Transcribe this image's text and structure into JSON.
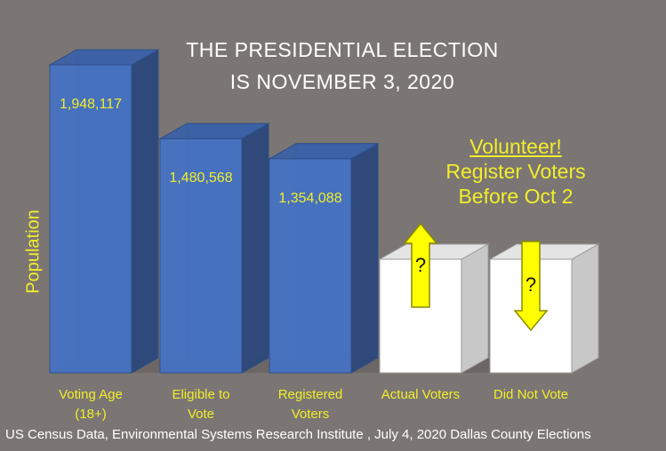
{
  "title": {
    "line1": "THE PRESIDENTIAL ELECTION",
    "line2": "IS NOVEMBER  3, 2020"
  },
  "callout": {
    "heading": "Volunteer!",
    "line2": "Register Voters",
    "line3": "Before Oct 2"
  },
  "source": "US Census Data, Environmental Systems Research Institute , July 4, 2020 Dallas County Elections",
  "colors": {
    "background": "#7b7673",
    "bar_blue": "#4472c4",
    "bar_white": "#ffffff",
    "text_yellow": "#f2ee2a",
    "arrow_yellow": "#ffff00"
  },
  "chart_data": {
    "type": "bar",
    "style": "3d-column",
    "ylabel": "Population",
    "categories": [
      "Voting Age\n(18+)",
      "Eligible to\nVote",
      "Registered\nVoters",
      "Actual Voters",
      "Did Not Vote"
    ],
    "values": [
      1948117,
      1480568,
      1354088,
      null,
      null
    ],
    "value_labels": [
      "1,948,117",
      "1,480,568",
      "1,354,088",
      "?",
      "?"
    ],
    "unknown_markers": [
      {
        "category": "Actual Voters",
        "arrow": "up-arrow-icon"
      },
      {
        "category": "Did Not Vote",
        "arrow": "down-arrow-icon"
      }
    ],
    "ylim": [
      0,
      1948117
    ],
    "grid": false,
    "legend": "none"
  }
}
